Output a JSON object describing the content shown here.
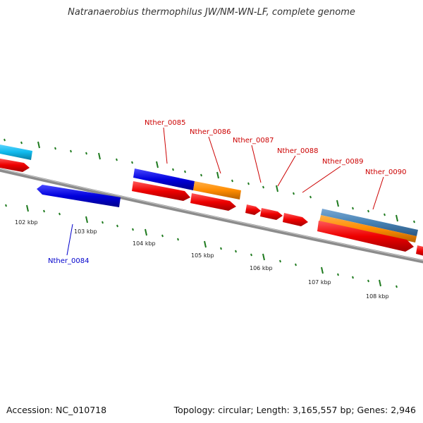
{
  "title": "Natranaerobius thermophilus JW/NM-WN-LF, complete genome",
  "footer": {
    "accession": "Accession: NC_010718",
    "summary": "Topology: circular; Length: 3,165,557 bp; Genes: 2,946"
  },
  "kbp_labels": [
    "102 kbp",
    "103 kbp",
    "104 kbp",
    "105 kbp",
    "106 kbp",
    "107 kbp",
    "108 kbp"
  ],
  "gene_labels": {
    "0084": "Nther_0084",
    "0085": "Nther_0085",
    "0086": "Nther_0086",
    "0087": "Nther_0087",
    "0088": "Nther_0088",
    "0089": "Nther_0089",
    "0090": "Nther_0090"
  },
  "colors": {
    "backbone": "#8c8c8c",
    "tick": "#1e7a1e",
    "cds": "#ee0000",
    "gene_fwd": "#0000dd",
    "gene_alt": "#ff8c00",
    "gene_cyan": "#11bbee",
    "gene_steel": "#4682b4",
    "label_red": "#cc0000",
    "label_blue": "#0000cc"
  }
}
